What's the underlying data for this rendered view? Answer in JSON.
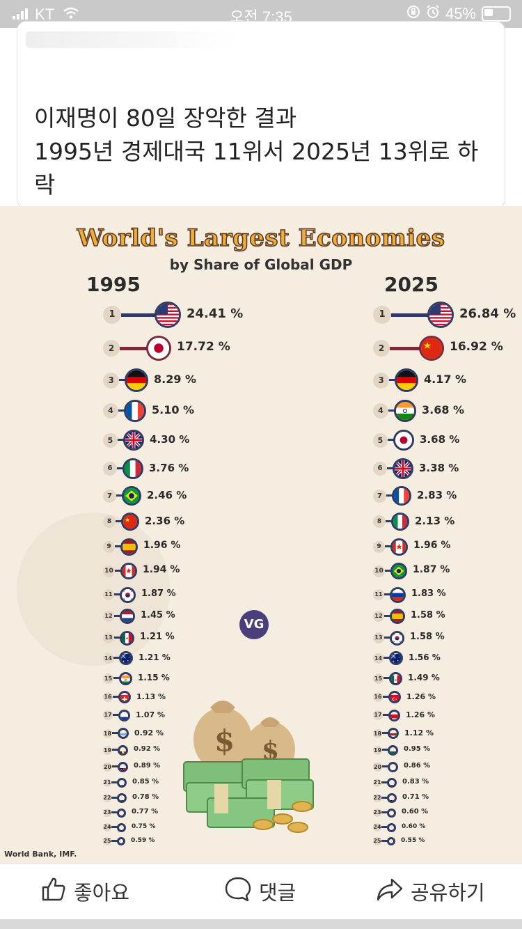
{
  "status_bar": {
    "carrier": "KT",
    "time": "오전 7:35",
    "battery": "45%"
  },
  "post": {
    "text_line1": "이재명이 80일 장악한 결과",
    "text_line2": "1995년 경제대국 11위서 2025년 13위로 하",
    "text_line3": "락"
  },
  "infographic": {
    "title": "World's Largest Economies",
    "subtitle": "by Share of Global GDP",
    "year_left": "1995",
    "year_right": "2025",
    "logo": "VG",
    "source": "World Bank, IMF.",
    "colors": {
      "background": "#f6ede1",
      "bar": "#2f3b63",
      "title": "#f0ad3a"
    },
    "rows_1995": [
      {
        "rank": "1",
        "country": "United States",
        "share": "24.41 %",
        "flag": "us-flag-icon"
      },
      {
        "rank": "2",
        "country": "Japan",
        "share": "17.72 %",
        "flag": "japan-flag-icon"
      },
      {
        "rank": "3",
        "country": "Germany",
        "share": "8.29 %",
        "flag": "germany-flag-icon"
      },
      {
        "rank": "4",
        "country": "France",
        "share": "5.10 %",
        "flag": "france-flag-icon"
      },
      {
        "rank": "5",
        "country": "UK",
        "share": "4.30 %",
        "flag": "uk-flag-icon"
      },
      {
        "rank": "6",
        "country": "Italy",
        "share": "3.76 %",
        "flag": "italy-flag-icon"
      },
      {
        "rank": "7",
        "country": "Brazil",
        "share": "2.46 %",
        "flag": "brazil-flag-icon"
      },
      {
        "rank": "8",
        "country": "China",
        "share": "2.36 %",
        "flag": "china-flag-icon"
      },
      {
        "rank": "9",
        "country": "Spain",
        "share": "1.96 %",
        "flag": "spain-flag-icon"
      },
      {
        "rank": "10",
        "country": "Canada",
        "share": "1.94 %",
        "flag": "canada-flag-icon"
      },
      {
        "rank": "11",
        "country": "South Korea",
        "share": "1.87 %",
        "flag": "south-korea-flag-icon"
      },
      {
        "rank": "12",
        "country": "Netherlands",
        "share": "1.45 %",
        "flag": "netherlands-flag-icon"
      },
      {
        "rank": "13",
        "country": "Mexico",
        "share": "1.21 %",
        "flag": "mexico-flag-icon"
      },
      {
        "rank": "14",
        "country": "Australia",
        "share": "1.21 %",
        "flag": "australia-flag-icon"
      },
      {
        "rank": "15",
        "country": "India",
        "share": "1.15 %",
        "flag": "india-flag-icon"
      },
      {
        "rank": "16",
        "country": "Switzerland",
        "share": "1.13 %",
        "flag": "switzerland-flag-icon"
      },
      {
        "rank": "17",
        "country": "Russia",
        "share": "1.07 %",
        "flag": "russia-flag-icon"
      },
      {
        "rank": "18",
        "country": "Argentina",
        "share": "0.92 %",
        "flag": "argentina-flag-icon"
      },
      {
        "rank": "19",
        "country": "Belgium",
        "share": "0.92 %",
        "flag": "belgium-flag-icon"
      },
      {
        "rank": "20",
        "country": "Taiwan",
        "share": "0.89 %",
        "flag": "taiwan-flag-icon"
      },
      {
        "rank": "21",
        "country": "Sweden",
        "share": "0.85 %",
        "flag": "sweden-flag-icon"
      },
      {
        "rank": "22",
        "country": "Indonesia",
        "share": "0.78 %",
        "flag": "indonesia-flag-icon"
      },
      {
        "rank": "23",
        "country": "Austria",
        "share": "0.77 %",
        "flag": "austria-flag-icon"
      },
      {
        "rank": "24",
        "country": "Türkiye",
        "share": "0.75 %",
        "flag": "turkiye-flag-icon"
      },
      {
        "rank": "25",
        "country": "Denmark",
        "share": "0.59 %",
        "flag": "denmark-flag-icon"
      }
    ],
    "rows_2025": [
      {
        "rank": "1",
        "country": "United States",
        "share": "26.84 %",
        "flag": "us-flag-icon"
      },
      {
        "rank": "2",
        "country": "China",
        "share": "16.92 %",
        "flag": "china-flag-icon"
      },
      {
        "rank": "3",
        "country": "Germany",
        "share": "4.17 %",
        "flag": "germany-flag-icon"
      },
      {
        "rank": "4",
        "country": "India",
        "share": "3.68 %",
        "flag": "india-flag-icon"
      },
      {
        "rank": "5",
        "country": "Japan",
        "share": "3.68 %",
        "flag": "japan-flag-icon"
      },
      {
        "rank": "6",
        "country": "UK",
        "share": "3.38 %",
        "flag": "uk-flag-icon"
      },
      {
        "rank": "7",
        "country": "France",
        "share": "2.83 %",
        "flag": "france-flag-icon"
      },
      {
        "rank": "8",
        "country": "Italy",
        "share": "2.13 %",
        "flag": "italy-flag-icon"
      },
      {
        "rank": "9",
        "country": "Canada",
        "share": "1.96 %",
        "flag": "canada-flag-icon"
      },
      {
        "rank": "10",
        "country": "Brazil",
        "share": "1.87 %",
        "flag": "brazil-flag-icon"
      },
      {
        "rank": "11",
        "country": "Russia",
        "share": "1.83 %",
        "flag": "russia-flag-icon"
      },
      {
        "rank": "12",
        "country": "Spain",
        "share": "1.58 %",
        "flag": "spain-flag-icon"
      },
      {
        "rank": "13",
        "country": "South Korea",
        "share": "1.58 %",
        "flag": "south-korea-flag-icon"
      },
      {
        "rank": "14",
        "country": "Australia",
        "share": "1.56 %",
        "flag": "australia-flag-icon"
      },
      {
        "rank": "15",
        "country": "Mexico",
        "share": "1.49 %",
        "flag": "mexico-flag-icon"
      },
      {
        "rank": "16",
        "country": "Türkiye",
        "share": "1.26 %",
        "flag": "turkiye-flag-icon"
      },
      {
        "rank": "17",
        "country": "Indonesia",
        "share": "1.26 %",
        "flag": "indonesia-flag-icon"
      },
      {
        "rank": "18",
        "country": "Netherlands",
        "share": "1.12 %",
        "flag": "netherlands-flag-icon"
      },
      {
        "rank": "19",
        "country": "Saudi Arabia",
        "share": "0.95 %",
        "flag": "saudi-arabia-flag-icon"
      },
      {
        "rank": "20",
        "country": "Poland",
        "share": "0.86 %",
        "flag": "poland-flag-icon"
      },
      {
        "rank": "21",
        "country": "Switzerland",
        "share": "0.83 %",
        "flag": "switzerland-flag-icon"
      },
      {
        "rank": "22",
        "country": "Taiwan",
        "share": "0.71 %",
        "flag": "taiwan-flag-icon"
      },
      {
        "rank": "23",
        "country": "Belgium",
        "share": "0.60 %",
        "flag": "belgium-flag-icon"
      },
      {
        "rank": "24",
        "country": "Argentina",
        "share": "0.60 %",
        "flag": "argentina-flag-icon"
      },
      {
        "rank": "25",
        "country": "Sweden",
        "share": "0.55 %",
        "flag": "sweden-flag-icon"
      }
    ]
  },
  "actions": {
    "like": "좋아요",
    "comment": "댓글",
    "share": "공유하기"
  }
}
